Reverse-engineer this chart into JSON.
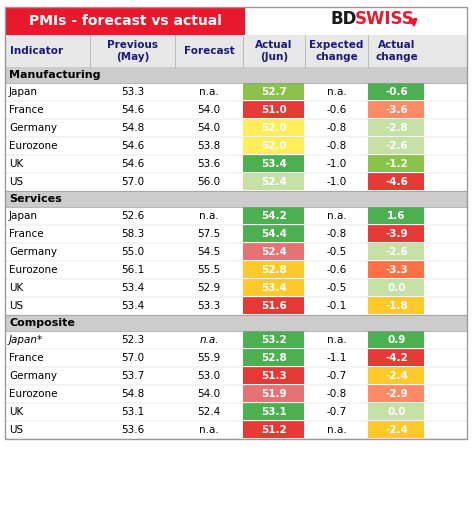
{
  "title": "PMIs - forecast vs actual",
  "logo_text": "BDSWISS",
  "header": [
    "Indicator",
    "Previous\n(May)",
    "Forecast",
    "Actual\n(Jun)",
    "Expected\nchange",
    "Actual\nchange"
  ],
  "sections": [
    {
      "name": "Manufacturing",
      "rows": [
        {
          "indicator": "Japan",
          "previous": "53.3",
          "forecast": "n.a.",
          "actual": "52.7",
          "exp_change": "n.a.",
          "act_change": "-0.6"
        },
        {
          "indicator": "France",
          "previous": "54.6",
          "forecast": "54.0",
          "actual": "51.0",
          "exp_change": "-0.6",
          "act_change": "-3.6"
        },
        {
          "indicator": "Germany",
          "previous": "54.8",
          "forecast": "54.0",
          "actual": "52.0",
          "exp_change": "-0.8",
          "act_change": "-2.8"
        },
        {
          "indicator": "Eurozone",
          "previous": "54.6",
          "forecast": "53.8",
          "actual": "52.0",
          "exp_change": "-0.8",
          "act_change": "-2.6"
        },
        {
          "indicator": "UK",
          "previous": "54.6",
          "forecast": "53.6",
          "actual": "53.4",
          "exp_change": "-1.0",
          "act_change": "-1.2"
        },
        {
          "indicator": "US",
          "previous": "57.0",
          "forecast": "56.0",
          "actual": "52.4",
          "exp_change": "-1.0",
          "act_change": "-4.6"
        }
      ]
    },
    {
      "name": "Services",
      "rows": [
        {
          "indicator": "Japan",
          "previous": "52.6",
          "forecast": "n.a.",
          "actual": "54.2",
          "exp_change": "n.a.",
          "act_change": "1.6"
        },
        {
          "indicator": "France",
          "previous": "58.3",
          "forecast": "57.5",
          "actual": "54.4",
          "exp_change": "-0.8",
          "act_change": "-3.9"
        },
        {
          "indicator": "Germany",
          "previous": "55.0",
          "forecast": "54.5",
          "actual": "52.4",
          "exp_change": "-0.5",
          "act_change": "-2.6"
        },
        {
          "indicator": "Eurozone",
          "previous": "56.1",
          "forecast": "55.5",
          "actual": "52.8",
          "exp_change": "-0.6",
          "act_change": "-3.3"
        },
        {
          "indicator": "UK",
          "previous": "53.4",
          "forecast": "52.9",
          "actual": "53.4",
          "exp_change": "-0.5",
          "act_change": "0.0"
        },
        {
          "indicator": "US",
          "previous": "53.4",
          "forecast": "53.3",
          "actual": "51.6",
          "exp_change": "-0.1",
          "act_change": "-1.8"
        }
      ]
    },
    {
      "name": "Composite",
      "rows": [
        {
          "indicator": "Japan*",
          "previous": "52.3",
          "forecast": "n.a.",
          "actual": "53.2",
          "exp_change": "n.a.",
          "act_change": "0.9",
          "italic": true
        },
        {
          "indicator": "France",
          "previous": "57.0",
          "forecast": "55.9",
          "actual": "52.8",
          "exp_change": "-1.1",
          "act_change": "-4.2"
        },
        {
          "indicator": "Germany",
          "previous": "53.7",
          "forecast": "53.0",
          "actual": "51.3",
          "exp_change": "-0.7",
          "act_change": "-2.4"
        },
        {
          "indicator": "Eurozone",
          "previous": "54.8",
          "forecast": "54.0",
          "actual": "51.9",
          "exp_change": "-0.8",
          "act_change": "-2.9"
        },
        {
          "indicator": "UK",
          "previous": "53.1",
          "forecast": "52.4",
          "actual": "53.1",
          "exp_change": "-0.7",
          "act_change": "0.0"
        },
        {
          "indicator": "US",
          "previous": "53.6",
          "forecast": "n.a.",
          "actual": "51.2",
          "exp_change": "n.a.",
          "act_change": "-2.4"
        }
      ]
    }
  ],
  "colors": {
    "header_bg": "#e8e8e8",
    "title_bg": "#e8192c",
    "title_text": "#ffffff",
    "section_bg": "#d0d0d0",
    "row_bg_white": "#ffffff",
    "border": "#b0b0b0",
    "dark_green": "#2e7d32",
    "medium_green": "#66bb6a",
    "light_green": "#a5d6a7",
    "yellow_green": "#c5e1a5",
    "yellow": "#ffee58",
    "light_orange": "#ffca28",
    "orange": "#ffa726",
    "light_red": "#ef9a9a",
    "red": "#e53935",
    "dark_red": "#b71c1c"
  },
  "actual_colors": {
    "52.7": "#8bc34a",
    "51.0": "#e53935",
    "52.0_mfr_de": "#ffee58",
    "52.0_mfr_ez": "#ffee58",
    "53.4_mfr_uk": "#4caf50",
    "52.4_mfr_us": "#c5e1a5",
    "54.2": "#4caf50",
    "54.4": "#4caf50",
    "52.4_svc_de": "#e57373",
    "52.8_svc_ez": "#ffca28",
    "53.4_svc_uk": "#ffca28",
    "51.6": "#e53935",
    "53.2": "#4caf50",
    "52.8_cmp_fr": "#4caf50",
    "51.3": "#e53935",
    "51.9": "#e57373",
    "53.1": "#4caf50",
    "51.2": "#e53935"
  }
}
